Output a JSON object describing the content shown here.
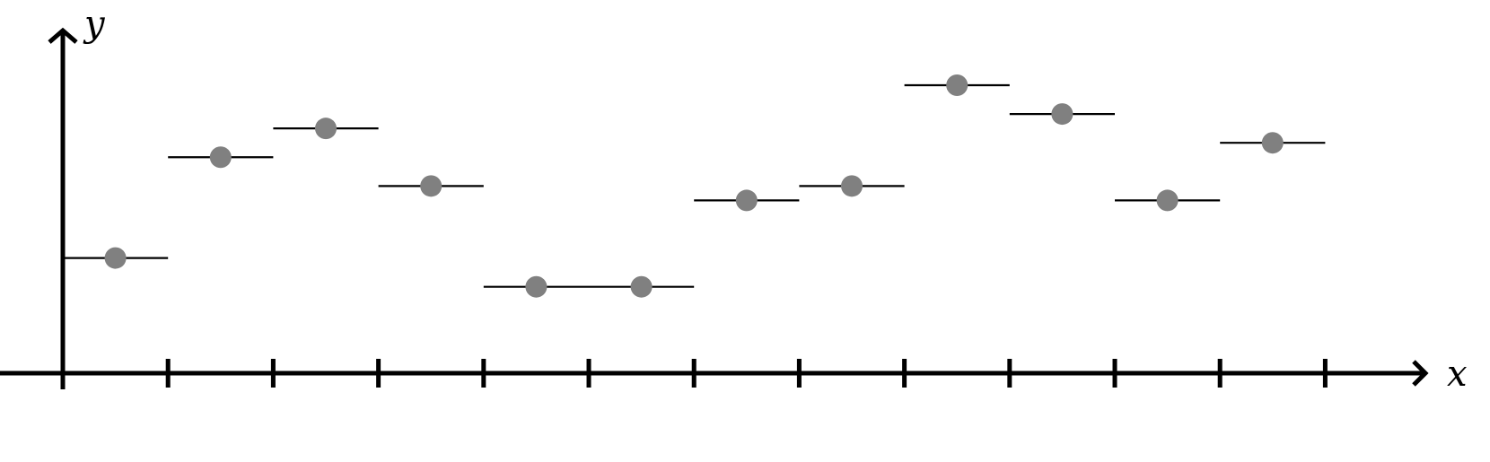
{
  "chart_data": {
    "type": "scatter",
    "xlabel": "x",
    "ylabel": "y",
    "xlim": [
      0,
      13
    ],
    "ylim": [
      0,
      12
    ],
    "grid": false,
    "x_ticks": [
      1,
      2,
      3,
      4,
      5,
      6,
      7,
      8,
      9,
      10,
      11,
      12
    ],
    "series": [
      {
        "points": [
          {
            "x": 0.5,
            "y": 4.0,
            "from": 0,
            "to": 1
          },
          {
            "x": 1.5,
            "y": 7.5,
            "from": 1,
            "to": 2
          },
          {
            "x": 2.5,
            "y": 8.5,
            "from": 2,
            "to": 3
          },
          {
            "x": 3.5,
            "y": 6.5,
            "from": 3,
            "to": 4
          },
          {
            "x": 4.5,
            "y": 3.0,
            "from": 4,
            "to": 5
          },
          {
            "x": 5.5,
            "y": 3.0,
            "from": 5,
            "to": 6
          },
          {
            "x": 6.5,
            "y": 6.0,
            "from": 6,
            "to": 7
          },
          {
            "x": 7.5,
            "y": 6.5,
            "from": 7,
            "to": 8
          },
          {
            "x": 8.5,
            "y": 10.0,
            "from": 8,
            "to": 9
          },
          {
            "x": 9.5,
            "y": 9.0,
            "from": 9,
            "to": 10
          },
          {
            "x": 10.5,
            "y": 6.0,
            "from": 10,
            "to": 11
          },
          {
            "x": 11.5,
            "y": 8.0,
            "from": 11,
            "to": 12
          }
        ]
      }
    ],
    "colors": {
      "point": "#808080",
      "axis": "#000000",
      "segment": "#000000"
    }
  }
}
